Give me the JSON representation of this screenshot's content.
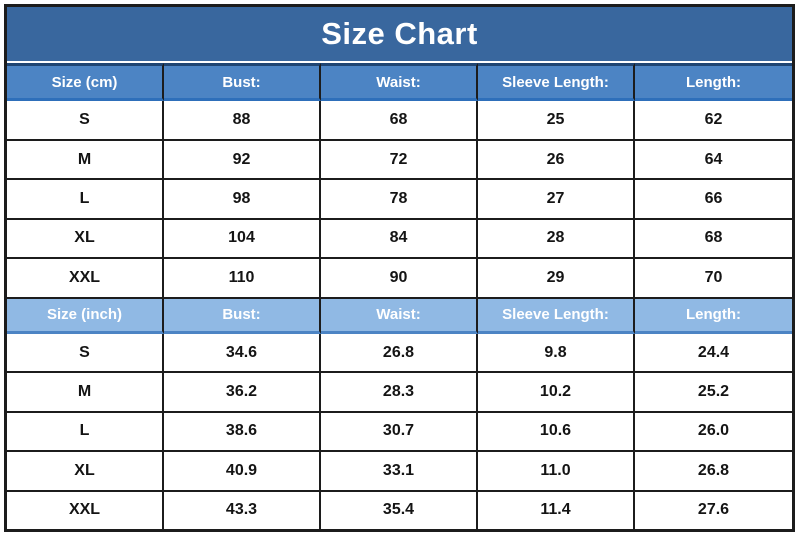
{
  "title": "Size Chart",
  "chart_data": {
    "type": "table",
    "title": "Size Chart",
    "sections": [
      {
        "unit": "cm",
        "header": [
          "Size (cm)",
          "Bust:",
          "Waist:",
          "Sleeve Length:",
          "Length:"
        ],
        "rows": [
          [
            "S",
            "88",
            "68",
            "25",
            "62"
          ],
          [
            "M",
            "92",
            "72",
            "26",
            "64"
          ],
          [
            "L",
            "98",
            "78",
            "27",
            "66"
          ],
          [
            "XL",
            "104",
            "84",
            "28",
            "68"
          ],
          [
            "XXL",
            "110",
            "90",
            "29",
            "70"
          ]
        ]
      },
      {
        "unit": "inch",
        "header": [
          "Size (inch)",
          "Bust:",
          "Waist:",
          "Sleeve Length:",
          "Length:"
        ],
        "rows": [
          [
            "S",
            "34.6",
            "26.8",
            "9.8",
            "24.4"
          ],
          [
            "M",
            "36.2",
            "28.3",
            "10.2",
            "25.2"
          ],
          [
            "L",
            "38.6",
            "30.7",
            "10.6",
            "26.0"
          ],
          [
            "XL",
            "40.9",
            "33.1",
            "11.0",
            "26.8"
          ],
          [
            "XXL",
            "43.3",
            "35.4",
            "11.4",
            "27.6"
          ]
        ]
      }
    ]
  },
  "colors": {
    "title_bg": "#39679e",
    "header_cm_bg": "#4c84c4",
    "header_inch_bg": "#90b9e4",
    "header_text": "#ffffff",
    "body_text": "#141414",
    "grid_border": "#1c1c1c",
    "header_cm_top": "#1f4573",
    "header_cm_bottom": "#2e6fba",
    "header_inch_bottom": "#4c84c4",
    "title_gap": "#ffffff"
  }
}
